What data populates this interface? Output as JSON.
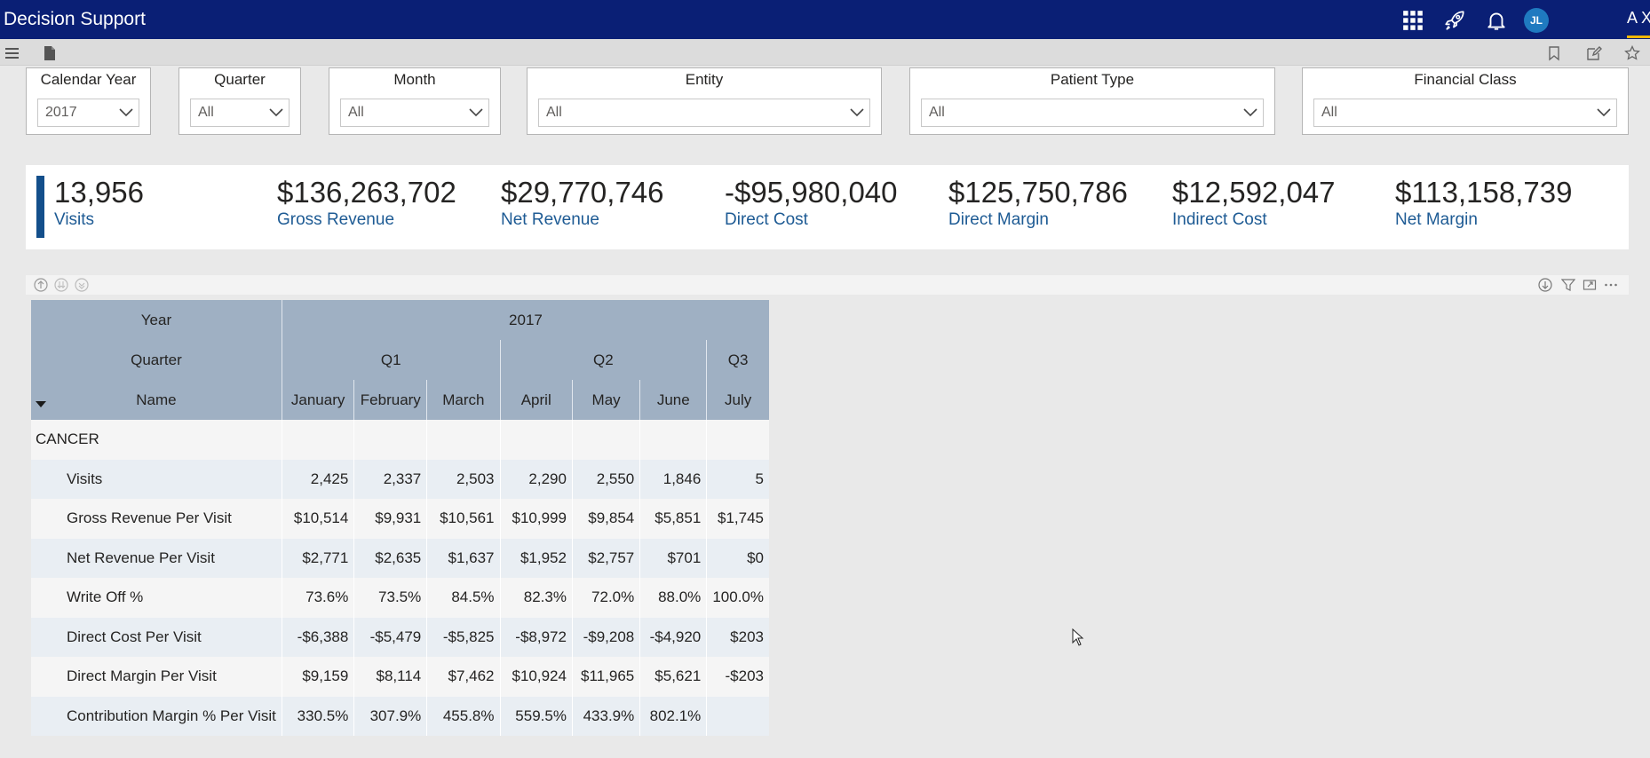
{
  "app": {
    "title": "Decision Support",
    "user_initials": "JL",
    "corner_label": "A X"
  },
  "topbar_icons": [
    "apps-grid-icon",
    "rocket-icon",
    "bell-icon"
  ],
  "toolbar_icons": {
    "left": [
      "hamburger-icon",
      "document-icon"
    ],
    "right": [
      "bookmark-icon",
      "edit-icon",
      "star-icon"
    ]
  },
  "slicers": [
    {
      "label": "Calendar Year",
      "value": "2017"
    },
    {
      "label": "Quarter",
      "value": "All"
    },
    {
      "label": "Month",
      "value": "All"
    },
    {
      "label": "Entity",
      "value": "All"
    },
    {
      "label": "Patient Type",
      "value": "All"
    },
    {
      "label": "Financial Class",
      "value": "All"
    }
  ],
  "kpis": [
    {
      "value": "13,956",
      "label": "Visits"
    },
    {
      "value": "$136,263,702",
      "label": "Gross Revenue"
    },
    {
      "value": "$29,770,746",
      "label": "Net Revenue"
    },
    {
      "value": "-$95,980,040",
      "label": "Direct Cost"
    },
    {
      "value": "$125,750,786",
      "label": "Direct Margin"
    },
    {
      "value": "$12,592,047",
      "label": "Indirect Cost"
    },
    {
      "value": "$113,158,739",
      "label": "Net Margin"
    }
  ],
  "matrix": {
    "row_headers": {
      "year": "Year",
      "quarter": "Quarter",
      "name": "Name"
    },
    "year": "2017",
    "quarters": [
      "Q1",
      "Q2",
      "Q3"
    ],
    "months": [
      "January",
      "February",
      "March",
      "April",
      "May",
      "June",
      "July"
    ],
    "category": "CANCER",
    "rows": [
      {
        "name": "Visits",
        "values": [
          "2,425",
          "2,337",
          "2,503",
          "2,290",
          "2,550",
          "1,846",
          "5"
        ]
      },
      {
        "name": "Gross Revenue Per Visit",
        "values": [
          "$10,514",
          "$9,931",
          "$10,561",
          "$10,999",
          "$9,854",
          "$5,851",
          "$1,745"
        ]
      },
      {
        "name": "Net Revenue Per Visit",
        "values": [
          "$2,771",
          "$2,635",
          "$1,637",
          "$1,952",
          "$2,757",
          "$701",
          "$0"
        ]
      },
      {
        "name": "Write Off %",
        "values": [
          "73.6%",
          "73.5%",
          "84.5%",
          "82.3%",
          "72.0%",
          "88.0%",
          "100.0%"
        ]
      },
      {
        "name": "Direct Cost Per Visit",
        "values": [
          "-$6,388",
          "-$5,479",
          "-$5,825",
          "-$8,972",
          "-$9,208",
          "-$4,920",
          "$203"
        ]
      },
      {
        "name": "Direct Margin Per Visit",
        "values": [
          "$9,159",
          "$8,114",
          "$7,462",
          "$10,924",
          "$11,965",
          "$5,621",
          "-$203"
        ]
      },
      {
        "name": "Contribution Margin % Per Visit",
        "values": [
          "330.5%",
          "307.9%",
          "455.8%",
          "559.5%",
          "433.9%",
          "802.1%",
          ""
        ]
      }
    ]
  }
}
